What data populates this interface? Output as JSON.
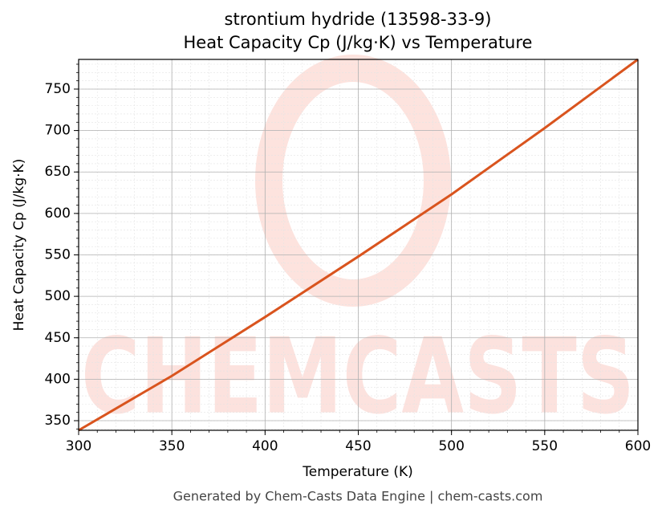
{
  "chart_data": {
    "type": "line",
    "title": "strontium hydride (13598-33-9)",
    "subtitle": "Heat Capacity Cp (J/kg·K) vs Temperature",
    "x_label": "Temperature (K)",
    "y_label": "Heat Capacity Cp (J/kg·K)",
    "footer": "Generated by Chem-Casts Data Engine | chem-casts.com",
    "watermark": "CHEMCASTS",
    "x": [
      300,
      350,
      400,
      450,
      500,
      550,
      600
    ],
    "series": [
      {
        "color": "#d9541e",
        "values": [
          338.4,
          404,
          475,
          548,
          623,
          703,
          785.8
        ]
      }
    ],
    "xlim": [
      300,
      600
    ],
    "xticks": [
      300,
      350,
      400,
      450,
      500,
      550,
      600
    ],
    "ylim": [
      338.4,
      785.8
    ],
    "yticks": [
      350,
      400,
      450,
      500,
      550,
      600,
      650,
      700,
      750
    ],
    "grid": true
  }
}
